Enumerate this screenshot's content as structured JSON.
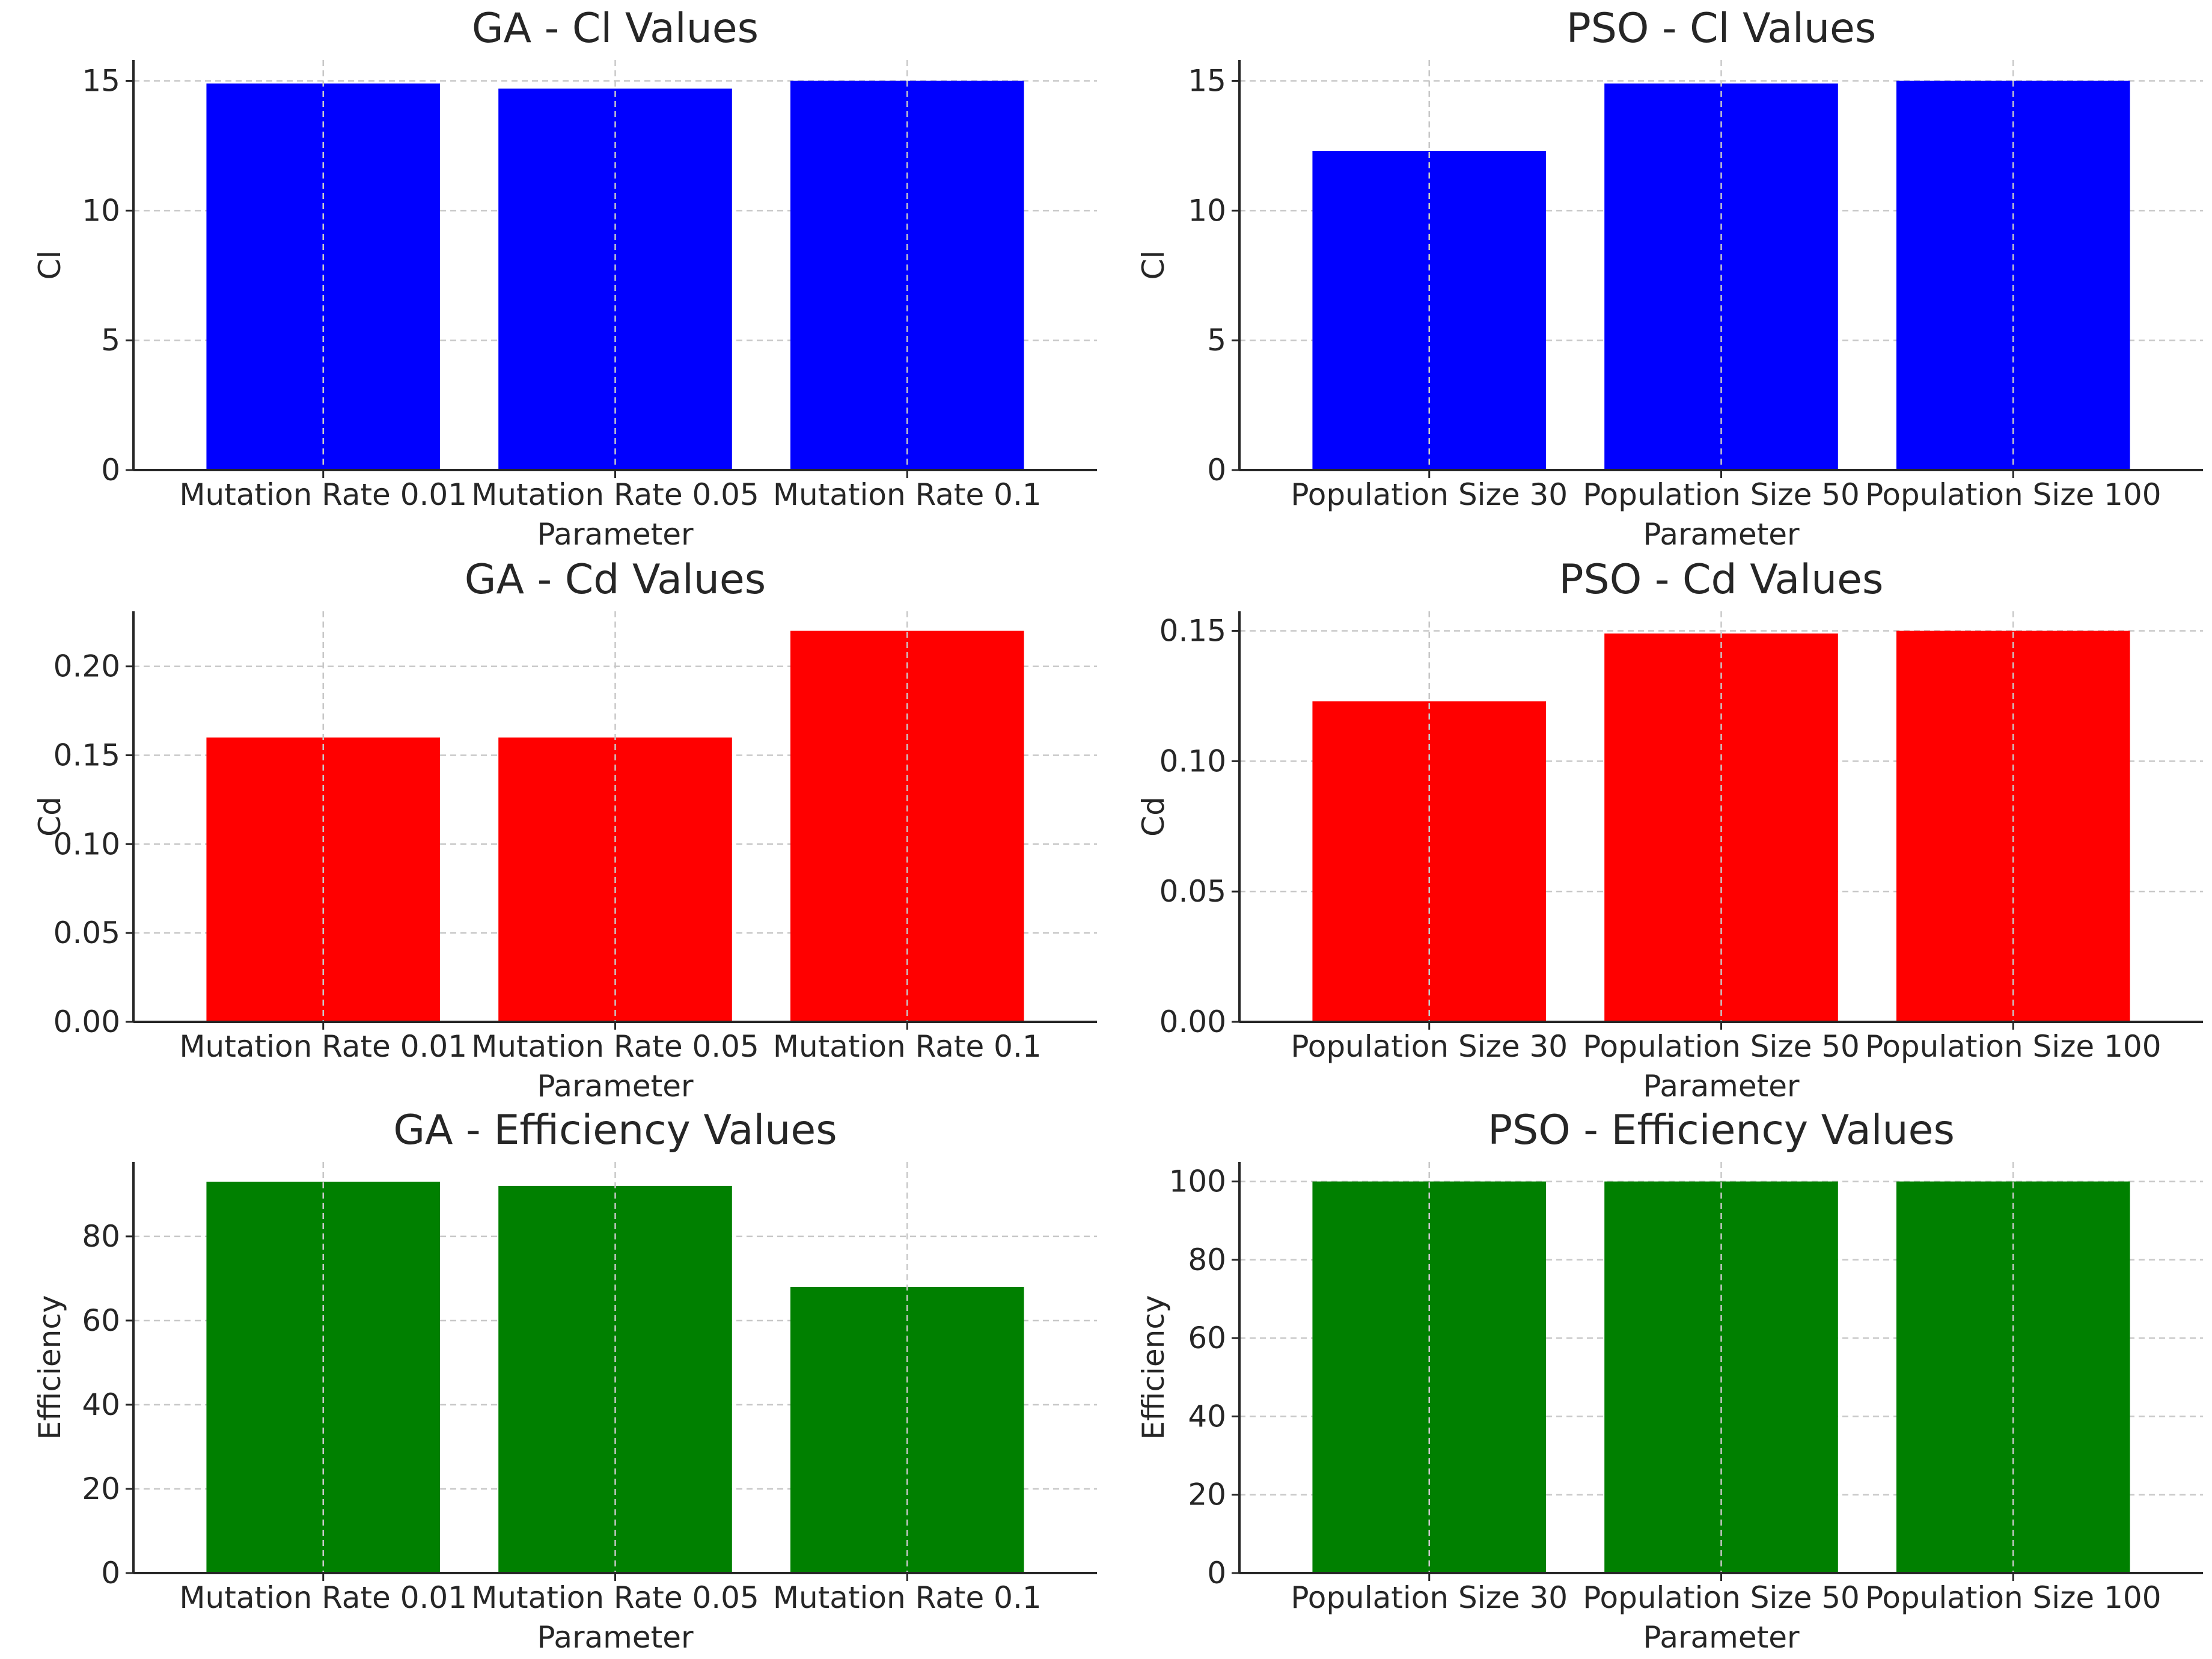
{
  "chart_data": [
    {
      "type": "bar",
      "title": "GA - Cl Values",
      "xlabel": "Parameter",
      "ylabel": "Cl",
      "categories": [
        "Mutation Rate 0.01",
        "Mutation Rate 0.05",
        "Mutation Rate 0.1"
      ],
      "values": [
        14.9,
        14.7,
        15.0
      ],
      "ylim": [
        0,
        15.8
      ],
      "yticks": [
        0,
        5,
        10,
        15
      ],
      "ytick_labels": [
        "0",
        "5",
        "10",
        "15"
      ],
      "color": "#0000ff",
      "grid": true
    },
    {
      "type": "bar",
      "title": "PSO - Cl Values",
      "xlabel": "Parameter",
      "ylabel": "Cl",
      "categories": [
        "Population Size 30",
        "Population Size 50",
        "Population Size 100"
      ],
      "values": [
        12.3,
        14.9,
        15.0
      ],
      "ylim": [
        0,
        15.8
      ],
      "yticks": [
        0,
        5,
        10,
        15
      ],
      "ytick_labels": [
        "0",
        "5",
        "10",
        "15"
      ],
      "color": "#0000ff",
      "grid": true
    },
    {
      "type": "bar",
      "title": "GA - Cd Values",
      "xlabel": "Parameter",
      "ylabel": "Cd",
      "categories": [
        "Mutation Rate 0.01",
        "Mutation Rate 0.05",
        "Mutation Rate 0.1"
      ],
      "values": [
        0.16,
        0.16,
        0.22
      ],
      "ylim": [
        0,
        0.231
      ],
      "yticks": [
        0,
        0.05,
        0.1,
        0.15,
        0.2
      ],
      "ytick_labels": [
        "0.00",
        "0.05",
        "0.10",
        "0.15",
        "0.20"
      ],
      "color": "#ff0000",
      "grid": true
    },
    {
      "type": "bar",
      "title": "PSO - Cd Values",
      "xlabel": "Parameter",
      "ylabel": "Cd",
      "categories": [
        "Population Size 30",
        "Population Size 50",
        "Population Size 100"
      ],
      "values": [
        0.123,
        0.149,
        0.15
      ],
      "ylim": [
        0,
        0.1575
      ],
      "yticks": [
        0,
        0.05,
        0.1,
        0.15
      ],
      "ytick_labels": [
        "0.00",
        "0.05",
        "0.10",
        "0.15"
      ],
      "color": "#ff0000",
      "grid": true
    },
    {
      "type": "bar",
      "title": "GA - Efficiency Values",
      "xlabel": "Parameter",
      "ylabel": "Efficiency",
      "categories": [
        "Mutation Rate 0.01",
        "Mutation Rate 0.05",
        "Mutation Rate 0.1"
      ],
      "values": [
        93,
        92,
        68
      ],
      "ylim": [
        0,
        97.7
      ],
      "yticks": [
        0,
        20,
        40,
        60,
        80
      ],
      "ytick_labels": [
        "0",
        "20",
        "40",
        "60",
        "80"
      ],
      "color": "#008000",
      "grid": true
    },
    {
      "type": "bar",
      "title": "PSO - Efficiency Values",
      "xlabel": "Parameter",
      "ylabel": "Efficiency",
      "categories": [
        "Population Size 30",
        "Population Size 50",
        "Population Size 100"
      ],
      "values": [
        100,
        100,
        100
      ],
      "ylim": [
        0,
        105
      ],
      "yticks": [
        0,
        20,
        40,
        60,
        80,
        100
      ],
      "ytick_labels": [
        "0",
        "20",
        "40",
        "60",
        "80",
        "100"
      ],
      "color": "#008000",
      "grid": true
    }
  ]
}
